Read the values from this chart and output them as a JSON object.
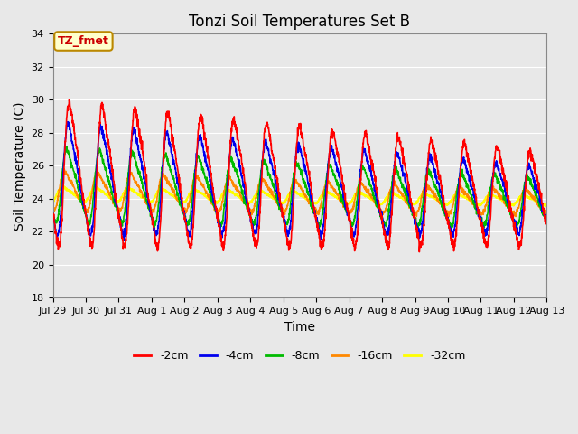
{
  "title": "Tonzi Soil Temperatures Set B",
  "xlabel": "Time",
  "ylabel": "Soil Temperature (C)",
  "ylim": [
    18,
    34
  ],
  "yticks": [
    18,
    20,
    22,
    24,
    26,
    28,
    30,
    32,
    34
  ],
  "x_labels": [
    "Jul 29",
    "Jul 30",
    "Jul 31",
    "Aug 1",
    "Aug 2",
    "Aug 3",
    "Aug 4",
    "Aug 5",
    "Aug 6",
    "Aug 7",
    "Aug 8",
    "Aug 9",
    "Aug 10",
    "Aug 11",
    "Aug 12",
    "Aug 13"
  ],
  "annotation_text": "TZ_fmet",
  "annotation_bg": "#ffffcc",
  "annotation_border": "#bb8800",
  "annotation_text_color": "#cc0000",
  "colors": {
    "-2cm": "#ff0000",
    "-4cm": "#0000ee",
    "-8cm": "#00bb00",
    "-16cm": "#ff8800",
    "-32cm": "#ffff00"
  },
  "background_color": "#e8e8e8",
  "plot_bg": "#e8e8e8",
  "grid_color": "#ffffff",
  "title_fontsize": 12,
  "axis_fontsize": 10,
  "tick_fontsize": 8,
  "legend_fontsize": 9,
  "figsize": [
    6.4,
    4.8
  ],
  "dpi": 100
}
